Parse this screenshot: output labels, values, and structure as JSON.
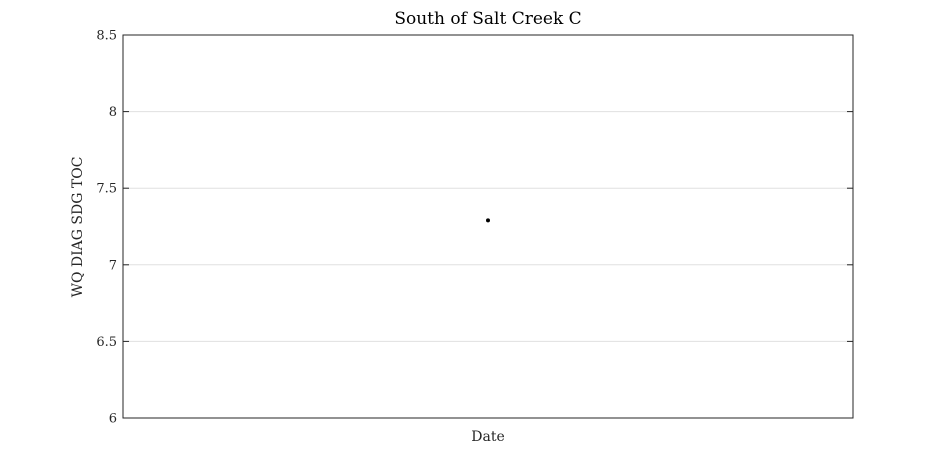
{
  "chart_data": {
    "type": "scatter",
    "title": "South of Salt Creek C",
    "xlabel": "Date",
    "ylabel": "WQ DIAG SDG TOC",
    "ylim": [
      6,
      8.5
    ],
    "yticks": [
      "6",
      "6.5",
      "7",
      "7.5",
      "8",
      "8.5"
    ],
    "xticks": [],
    "grid": "horizontal",
    "legend": "none",
    "series": [
      {
        "x": [
          0.5
        ],
        "y": [
          7.29
        ],
        "color": "#000000"
      }
    ]
  }
}
